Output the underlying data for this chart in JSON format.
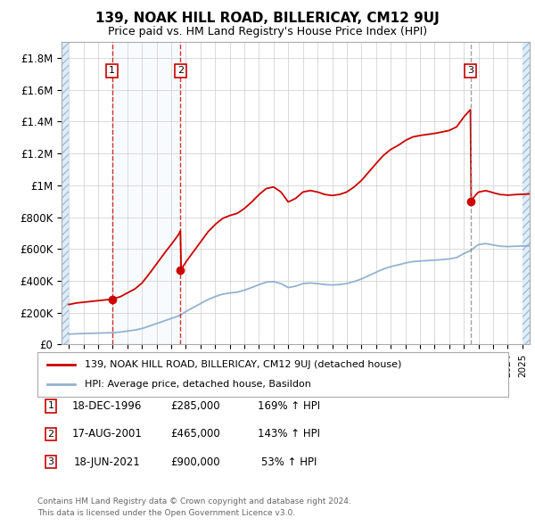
{
  "title": "139, NOAK HILL ROAD, BILLERICAY, CM12 9UJ",
  "subtitle": "Price paid vs. HM Land Registry's House Price Index (HPI)",
  "ylim": [
    0,
    1900000
  ],
  "xlim_start": 1993.5,
  "xlim_end": 2025.5,
  "yticks": [
    0,
    200000,
    400000,
    600000,
    800000,
    1000000,
    1200000,
    1400000,
    1600000,
    1800000
  ],
  "ytick_labels": [
    "£0",
    "£200K",
    "£400K",
    "£600K",
    "£800K",
    "£1M",
    "£1.2M",
    "£1.4M",
    "£1.6M",
    "£1.8M"
  ],
  "sales": [
    {
      "num": 1,
      "year": 1996.96,
      "price": 285000,
      "date": "18-DEC-1996",
      "pct": "169%"
    },
    {
      "num": 2,
      "year": 2001.63,
      "price": 465000,
      "date": "17-AUG-2001",
      "pct": "143%"
    },
    {
      "num": 3,
      "year": 2021.46,
      "price": 900000,
      "date": "18-JUN-2021",
      "pct": "53%"
    }
  ],
  "legend_line1": "139, NOAK HILL ROAD, BILLERICAY, CM12 9UJ (detached house)",
  "legend_line2": "HPI: Average price, detached house, Basildon",
  "footer1": "Contains HM Land Registry data © Crown copyright and database right 2024.",
  "footer2": "This data is licensed under the Open Government Licence v3.0.",
  "red_color": "#cc0000",
  "blue_color": "#88aacc",
  "bg_color": "#ffffff",
  "grid_color": "#cccccc",
  "hatch_fill": "#ddeeff"
}
